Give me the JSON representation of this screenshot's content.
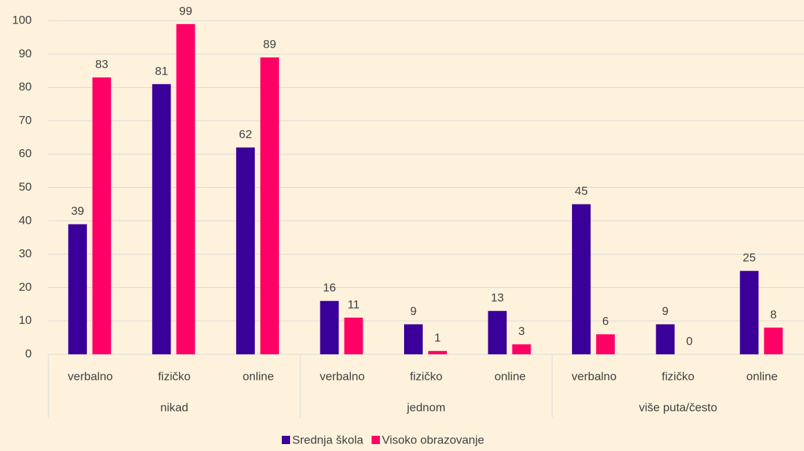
{
  "chart_data": {
    "type": "bar",
    "groups": [
      "nikad",
      "jednom",
      "više puta/često"
    ],
    "categories": [
      "verbalno",
      "fizičko",
      "online",
      "verbalno",
      "fizičko",
      "online",
      "verbalno",
      "fizičko",
      "online"
    ],
    "series": [
      {
        "name": "Srednja škola",
        "color": "#3a0099",
        "values": [
          39,
          81,
          62,
          16,
          9,
          13,
          45,
          9,
          25
        ]
      },
      {
        "name": "Visoko obrazovanje",
        "color": "#ff0066",
        "values": [
          83,
          99,
          89,
          11,
          1,
          3,
          6,
          0,
          8
        ]
      }
    ],
    "ylim": [
      0,
      100
    ],
    "yticks": [
      0,
      10,
      20,
      30,
      40,
      50,
      60,
      70,
      80,
      90,
      100
    ],
    "grid": true,
    "legend": "bottom"
  }
}
